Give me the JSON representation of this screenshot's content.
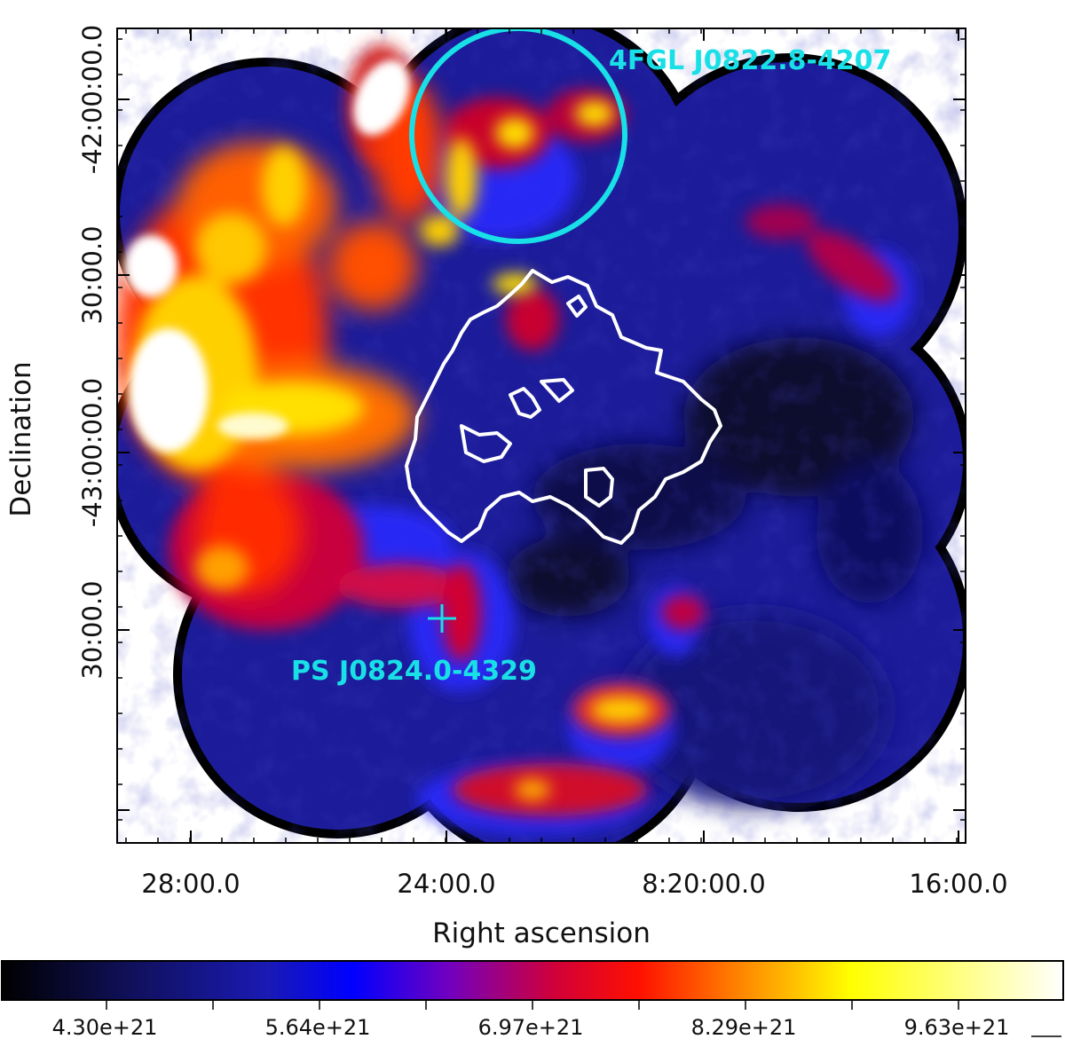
{
  "figure": {
    "x_axis_title": "Right ascension",
    "y_axis_title": "Declination",
    "x_ticks": [
      "28:00.0",
      "24:00.0",
      "8:20:00.0",
      "16:00.0"
    ],
    "y_ticks": [
      "-42:00:00.0",
      "30:00.0",
      "-43:00:00.0",
      "30:00.0"
    ],
    "y_tick_values": [
      "-42:00:00.0",
      "30:00.0",
      "-43:00:00.0",
      "30:00.0"
    ],
    "sources": [
      {
        "name": "4FGL J0822.8-4207",
        "marker": "circle",
        "color": "#18e0e6"
      },
      {
        "name": "PS J0824.0-4329",
        "marker": "cross",
        "color": "#18e0e6"
      }
    ],
    "contour_color": "#ffffff"
  },
  "colorbar": {
    "labels": [
      "4.30e+21",
      "5.64e+21",
      "6.97e+21",
      "8.29e+21",
      "9.63e+21"
    ],
    "colors": [
      "#000000",
      "#1a1a8c",
      "#0000ff",
      "#6a00c8",
      "#c8003c",
      "#ff0000",
      "#ff8000",
      "#ffff00",
      "#ffffff"
    ]
  }
}
